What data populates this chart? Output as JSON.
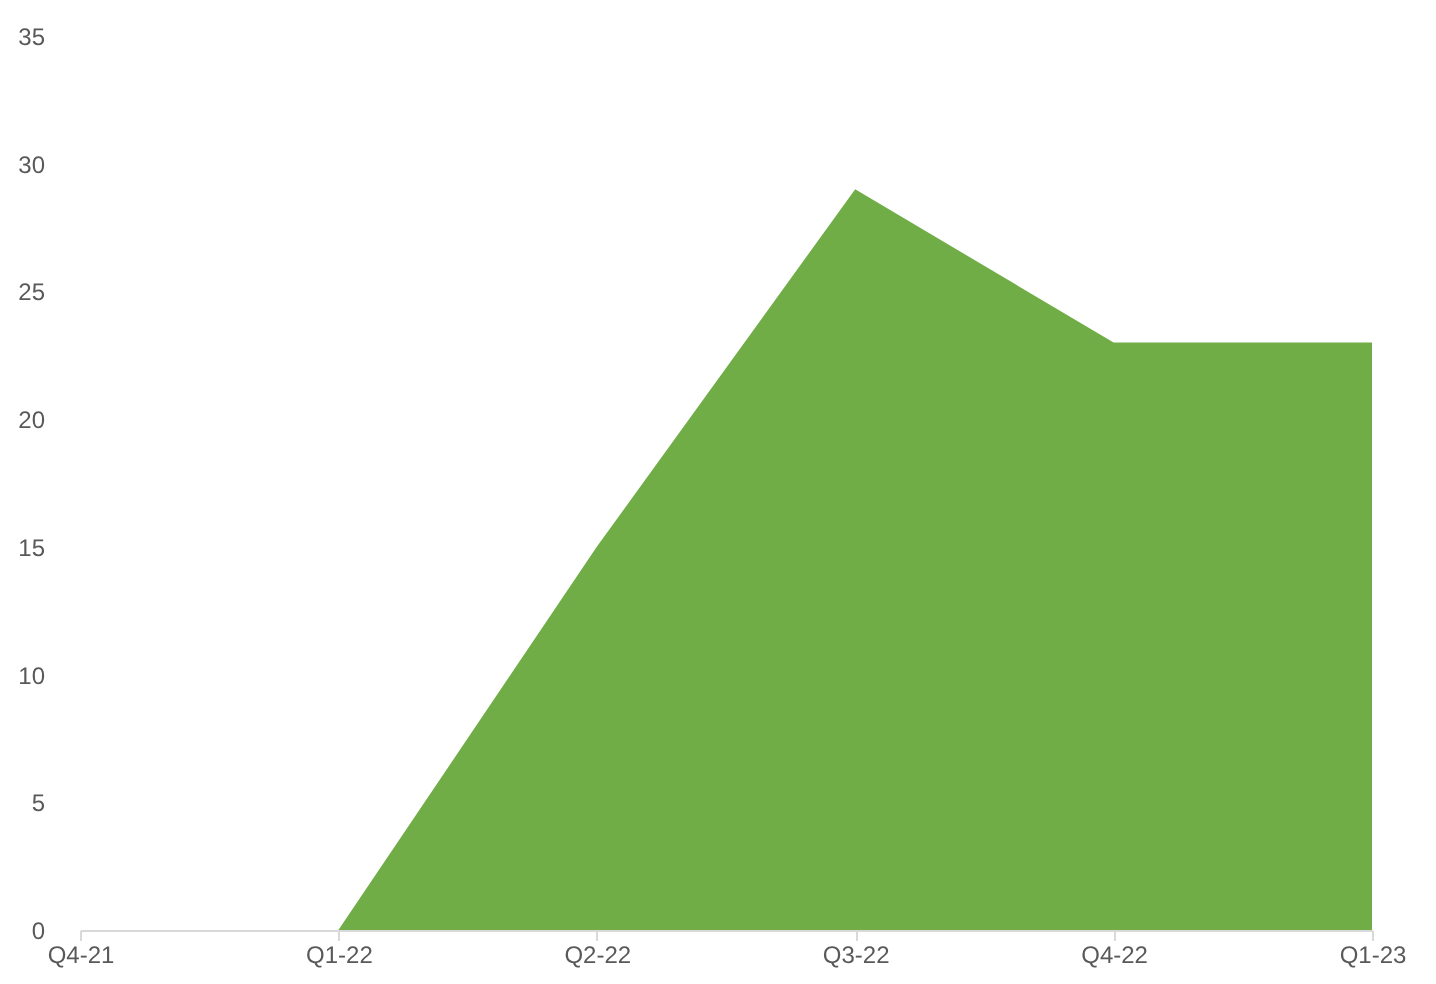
{
  "chart_data": {
    "type": "area",
    "categories": [
      "Q4-21",
      "Q1-22",
      "Q2-22",
      "Q3-22",
      "Q4-22",
      "Q1-23"
    ],
    "series": [
      {
        "color": "#70ad47",
        "values": [
          0,
          0,
          15,
          29,
          23,
          23
        ]
      }
    ],
    "ylim": [
      0,
      35
    ],
    "yticks": [
      0,
      5,
      10,
      15,
      20,
      25,
      30,
      35
    ],
    "grid": false
  }
}
